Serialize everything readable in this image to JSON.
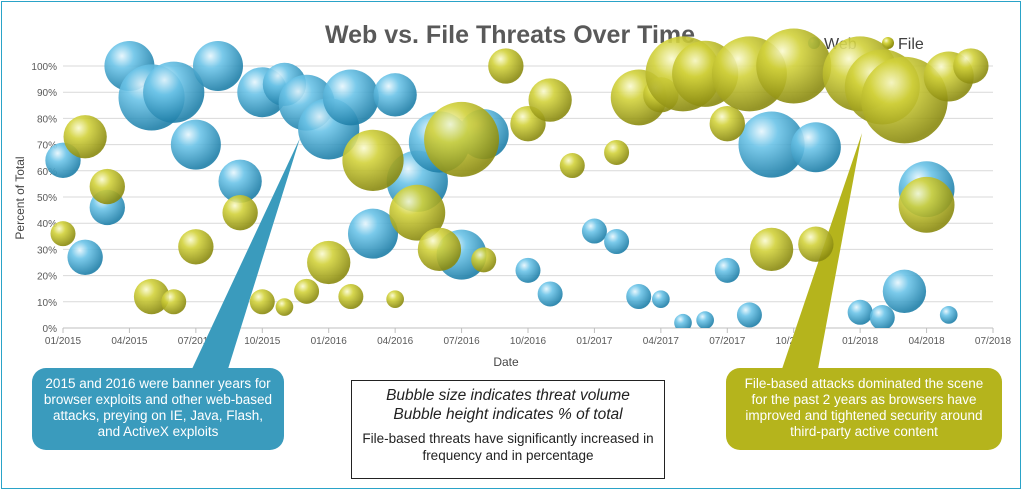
{
  "chart_data": {
    "type": "bubble",
    "title": "Web vs. File Threats Over Time",
    "xlabel": "Date",
    "ylabel": "Percent of Total",
    "x_ticks": [
      "01/2015",
      "04/2015",
      "07/2015",
      "10/2015",
      "01/2016",
      "04/2016",
      "07/2016",
      "10/2016",
      "01/2017",
      "04/2017",
      "07/2017",
      "10/2017",
      "01/2018",
      "04/2018",
      "07/2018"
    ],
    "y_ticks": [
      "0%",
      "10%",
      "20%",
      "30%",
      "40%",
      "50%",
      "60%",
      "70%",
      "80%",
      "90%",
      "100%"
    ],
    "ylim": [
      0,
      100
    ],
    "xlim_months": [
      "2015-01",
      "2018-07"
    ],
    "grid": true,
    "legend": "top-right",
    "series": [
      {
        "name": "Web",
        "color": "#4cb3dc",
        "points": [
          {
            "month": "2015-01",
            "y": 64,
            "size": 2
          },
          {
            "month": "2015-02",
            "y": 27,
            "size": 2
          },
          {
            "month": "2015-03",
            "y": 46,
            "size": 2
          },
          {
            "month": "2015-04",
            "y": 100,
            "size": 4
          },
          {
            "month": "2015-05",
            "y": 88,
            "size": 7
          },
          {
            "month": "2015-06",
            "y": 90,
            "size": 6
          },
          {
            "month": "2015-07",
            "y": 70,
            "size": 4
          },
          {
            "month": "2015-08",
            "y": 100,
            "size": 4
          },
          {
            "month": "2015-09",
            "y": 56,
            "size": 3
          },
          {
            "month": "2015-10",
            "y": 90,
            "size": 4
          },
          {
            "month": "2015-11",
            "y": 93,
            "size": 3
          },
          {
            "month": "2015-12",
            "y": 86,
            "size": 5
          },
          {
            "month": "2016-01",
            "y": 76,
            "size": 6
          },
          {
            "month": "2016-02",
            "y": 88,
            "size": 5
          },
          {
            "month": "2016-03",
            "y": 36,
            "size": 4
          },
          {
            "month": "2016-04",
            "y": 89,
            "size": 3
          },
          {
            "month": "2016-05",
            "y": 56,
            "size": 6
          },
          {
            "month": "2016-06",
            "y": 71,
            "size": 6
          },
          {
            "month": "2016-07",
            "y": 28,
            "size": 4
          },
          {
            "month": "2016-08",
            "y": 74,
            "size": 4
          },
          {
            "month": "2016-10",
            "y": 22,
            "size": 1
          },
          {
            "month": "2016-11",
            "y": 13,
            "size": 1
          },
          {
            "month": "2017-01",
            "y": 37,
            "size": 1
          },
          {
            "month": "2017-02",
            "y": 33,
            "size": 1
          },
          {
            "month": "2017-03",
            "y": 12,
            "size": 1
          },
          {
            "month": "2017-04",
            "y": 11,
            "size": 0.5
          },
          {
            "month": "2017-05",
            "y": 2,
            "size": 0.5
          },
          {
            "month": "2017-06",
            "y": 3,
            "size": 0.5
          },
          {
            "month": "2017-07",
            "y": 22,
            "size": 1
          },
          {
            "month": "2017-08",
            "y": 5,
            "size": 1
          },
          {
            "month": "2017-09",
            "y": 70,
            "size": 7
          },
          {
            "month": "2017-11",
            "y": 69,
            "size": 4
          },
          {
            "month": "2018-01",
            "y": 6,
            "size": 1
          },
          {
            "month": "2018-02",
            "y": 4,
            "size": 1
          },
          {
            "month": "2018-03",
            "y": 14,
            "size": 3
          },
          {
            "month": "2018-04",
            "y": 53,
            "size": 5
          },
          {
            "month": "2018-05",
            "y": 5,
            "size": 0.5
          }
        ]
      },
      {
        "name": "File",
        "color": "#c4c422",
        "points": [
          {
            "month": "2015-01",
            "y": 36,
            "size": 1
          },
          {
            "month": "2015-02",
            "y": 73,
            "size": 3
          },
          {
            "month": "2015-03",
            "y": 54,
            "size": 2
          },
          {
            "month": "2015-05",
            "y": 12,
            "size": 2
          },
          {
            "month": "2015-06",
            "y": 10,
            "size": 1
          },
          {
            "month": "2015-07",
            "y": 31,
            "size": 2
          },
          {
            "month": "2015-09",
            "y": 44,
            "size": 2
          },
          {
            "month": "2015-10",
            "y": 10,
            "size": 1
          },
          {
            "month": "2015-11",
            "y": 8,
            "size": 0.5
          },
          {
            "month": "2015-12",
            "y": 14,
            "size": 1
          },
          {
            "month": "2016-01",
            "y": 25,
            "size": 3
          },
          {
            "month": "2016-02",
            "y": 12,
            "size": 1
          },
          {
            "month": "2016-03",
            "y": 64,
            "size": 6
          },
          {
            "month": "2016-04",
            "y": 11,
            "size": 0.5
          },
          {
            "month": "2016-05",
            "y": 44,
            "size": 5
          },
          {
            "month": "2016-06",
            "y": 30,
            "size": 3
          },
          {
            "month": "2016-07",
            "y": 72,
            "size": 9
          },
          {
            "month": "2016-08",
            "y": 26,
            "size": 1
          },
          {
            "month": "2016-09",
            "y": 100,
            "size": 2
          },
          {
            "month": "2016-10",
            "y": 78,
            "size": 2
          },
          {
            "month": "2016-11",
            "y": 87,
            "size": 3
          },
          {
            "month": "2016-12",
            "y": 62,
            "size": 1
          },
          {
            "month": "2017-02",
            "y": 67,
            "size": 1
          },
          {
            "month": "2017-03",
            "y": 88,
            "size": 5
          },
          {
            "month": "2017-04",
            "y": 89,
            "size": 2
          },
          {
            "month": "2017-05",
            "y": 97,
            "size": 9
          },
          {
            "month": "2017-06",
            "y": 97,
            "size": 7
          },
          {
            "month": "2017-07",
            "y": 78,
            "size": 2
          },
          {
            "month": "2017-08",
            "y": 97,
            "size": 9
          },
          {
            "month": "2017-09",
            "y": 30,
            "size": 3
          },
          {
            "month": "2017-10",
            "y": 100,
            "size": 9
          },
          {
            "month": "2017-11",
            "y": 32,
            "size": 2
          },
          {
            "month": "2018-01",
            "y": 97,
            "size": 9
          },
          {
            "month": "2018-02",
            "y": 92,
            "size": 9
          },
          {
            "month": "2018-03",
            "y": 87,
            "size": 12
          },
          {
            "month": "2018-04",
            "y": 47,
            "size": 5
          },
          {
            "month": "2018-05",
            "y": 96,
            "size": 4
          },
          {
            "month": "2018-06",
            "y": 100,
            "size": 2
          }
        ]
      }
    ]
  },
  "callouts": {
    "web": "2015 and 2016 were banner years for browser exploits and other web-based attacks, preying on IE, Java, Flash, and ActiveX exploits",
    "file": "File-based attacks dominated the scene for the past 2 years as browsers have improved and tightened security around third-party active content"
  },
  "note": {
    "line1": "Bubble size indicates threat volume",
    "line2": "Bubble height indicates % of total",
    "line3": "File-based threats have significantly increased in frequency and in percentage"
  }
}
